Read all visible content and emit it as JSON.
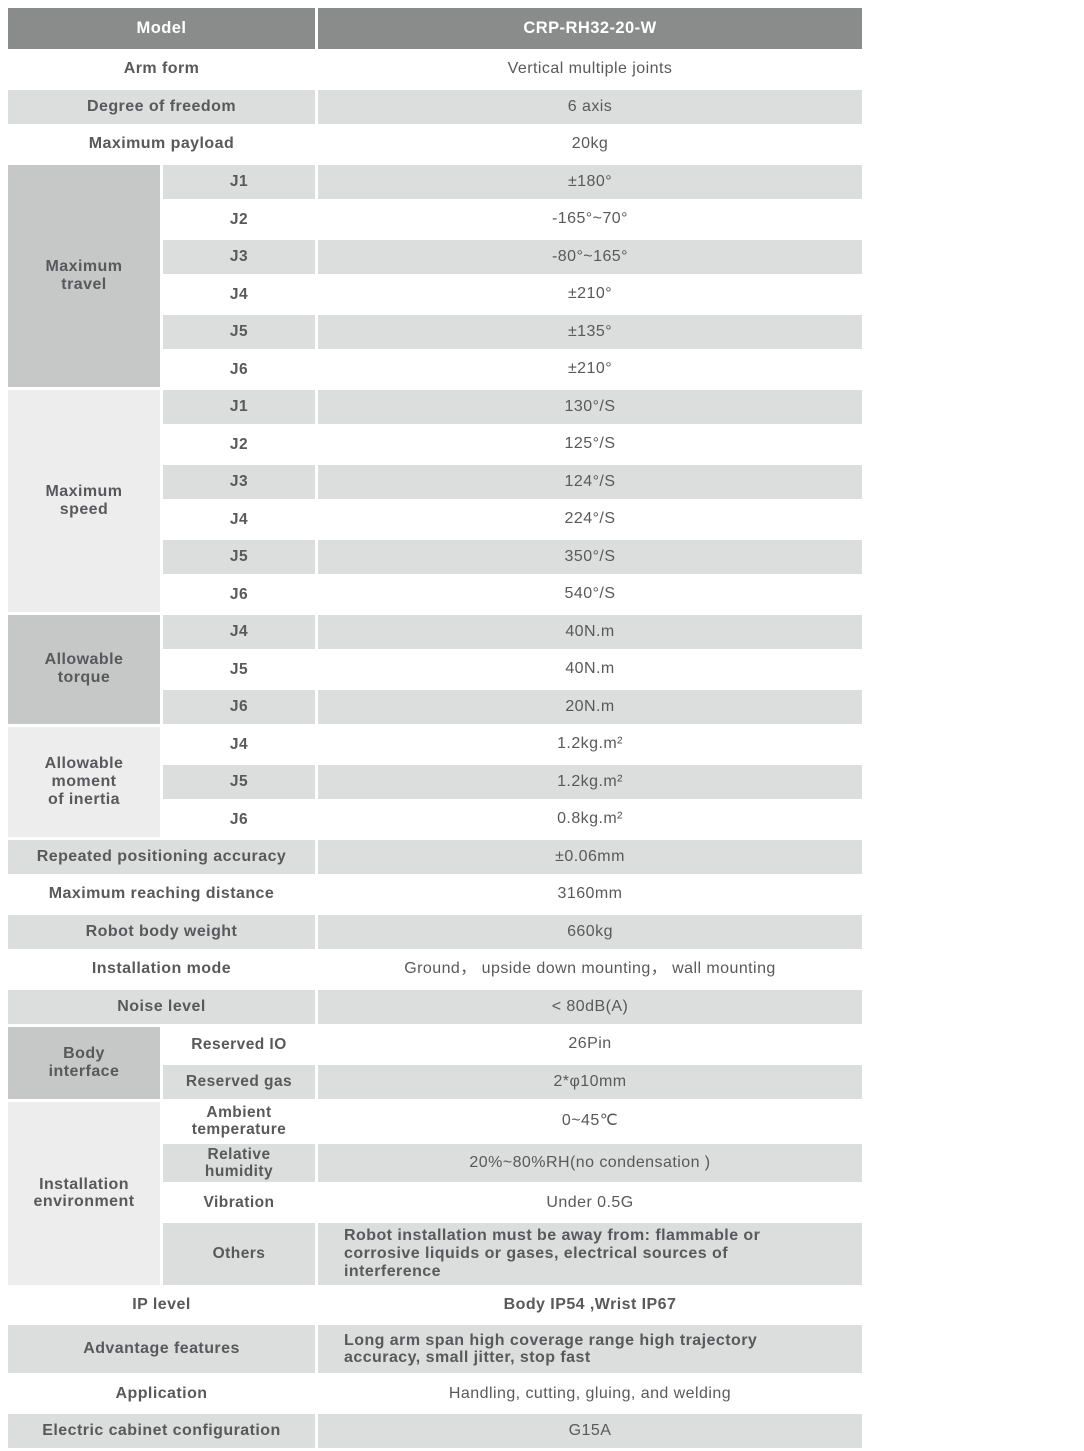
{
  "page": {
    "background": "#ffffff"
  },
  "colors": {
    "header_bg": "#8a8c8b",
    "header_text": "#ffffff",
    "zebra_gray": "#dcdddd",
    "zebra_white": "#ffffff",
    "group_medium": "#c6c7c7",
    "group_light": "#ededee",
    "text": "#58595b"
  },
  "table": {
    "header": {
      "label": "Model",
      "value": "CRP-RH32-20-W"
    },
    "sections": [
      {
        "kind": "row",
        "label": "Arm form",
        "value": "Vertical multiple joints",
        "shade": "white"
      },
      {
        "kind": "row",
        "label": "Degree of freedom",
        "value": "6 axis",
        "shade": "gray"
      },
      {
        "kind": "row",
        "label": "Maximum payload",
        "value": "20kg",
        "shade": "white"
      },
      {
        "kind": "group",
        "label": "Maximum\ntravel",
        "tone": "medium",
        "rows": [
          {
            "sub": "J1",
            "value": "±180°",
            "shade": "gray"
          },
          {
            "sub": "J2",
            "value": "-165°~70°",
            "shade": "white"
          },
          {
            "sub": "J3",
            "value": "-80°~165°",
            "shade": "gray"
          },
          {
            "sub": "J4",
            "value": "±210°",
            "shade": "white"
          },
          {
            "sub": "J5",
            "value": "±135°",
            "shade": "gray"
          },
          {
            "sub": "J6",
            "value": "±210°",
            "shade": "white"
          }
        ]
      },
      {
        "kind": "group",
        "label": "Maximum\nspeed",
        "tone": "light",
        "rows": [
          {
            "sub": "J1",
            "value": "130°/S",
            "shade": "gray"
          },
          {
            "sub": "J2",
            "value": "125°/S",
            "shade": "white"
          },
          {
            "sub": "J3",
            "value": "124°/S",
            "shade": "gray"
          },
          {
            "sub": "J4",
            "value": "224°/S",
            "shade": "white"
          },
          {
            "sub": "J5",
            "value": "350°/S",
            "shade": "gray"
          },
          {
            "sub": "J6",
            "value": "540°/S",
            "shade": "white"
          }
        ]
      },
      {
        "kind": "group",
        "label": "Allowable\ntorque",
        "tone": "medium",
        "rows": [
          {
            "sub": "J4",
            "value": "40N.m",
            "shade": "gray"
          },
          {
            "sub": "J5",
            "value": "40N.m",
            "shade": "white"
          },
          {
            "sub": "J6",
            "value": "20N.m",
            "shade": "gray"
          }
        ]
      },
      {
        "kind": "group",
        "label": "Allowable\nmoment\nof inertia",
        "tone": "light",
        "rows": [
          {
            "sub": "J4",
            "value": "1.2kg.m²",
            "shade": "white"
          },
          {
            "sub": "J5",
            "value": "1.2kg.m²",
            "shade": "gray"
          },
          {
            "sub": "J6",
            "value": "0.8kg.m²",
            "shade": "white"
          }
        ]
      },
      {
        "kind": "row",
        "label": "Repeated positioning accuracy",
        "value": "±0.06mm",
        "shade": "gray"
      },
      {
        "kind": "row",
        "label": "Maximum reaching distance",
        "value": "3160mm",
        "shade": "white"
      },
      {
        "kind": "row",
        "label": "Robot body weight",
        "value": "660kg",
        "shade": "gray"
      },
      {
        "kind": "row",
        "label": "Installation mode",
        "value": "Ground， upside down mounting， wall mounting",
        "shade": "white"
      },
      {
        "kind": "row",
        "label": "Noise level",
        "value": "< 80dB(A)",
        "shade": "gray"
      },
      {
        "kind": "group",
        "label": "Body\ninterface",
        "tone": "medium",
        "rows": [
          {
            "sub": "Reserved IO",
            "value": "26Pin",
            "shade": "white"
          },
          {
            "sub": "Reserved gas",
            "value": "2*φ10mm",
            "shade": "gray"
          }
        ]
      },
      {
        "kind": "group",
        "label": "Installation\nenvironment",
        "tone": "light",
        "rows": [
          {
            "sub": "Ambient\ntemperature",
            "value": "0~45℃",
            "shade": "white"
          },
          {
            "sub": "Relative\nhumidity",
            "value": "20%~80%RH(no condensation )",
            "shade": "gray"
          },
          {
            "sub": "Vibration",
            "value": "Under 0.5G",
            "shade": "white"
          },
          {
            "sub": "Others",
            "value": "Robot installation must be away from: flammable or corrosive liquids or gases, electrical sources of interference",
            "shade": "gray",
            "align": "left",
            "tall": 62,
            "value_bold": true
          }
        ]
      },
      {
        "kind": "row",
        "label": "IP level",
        "value": "Body IP54 ,Wrist IP67",
        "shade": "white",
        "value_bold": true
      },
      {
        "kind": "row",
        "label": "Advantage features",
        "value": "Long arm span high coverage range  high trajectory accuracy, small jitter, stop fast",
        "shade": "gray",
        "align": "left",
        "tall": 48,
        "value_bold": true
      },
      {
        "kind": "row",
        "label": "Application",
        "value": "Handling, cutting, gluing, and welding",
        "shade": "white"
      },
      {
        "kind": "row",
        "label": "Electric cabinet configuration",
        "value": "G15A",
        "shade": "gray"
      }
    ]
  }
}
